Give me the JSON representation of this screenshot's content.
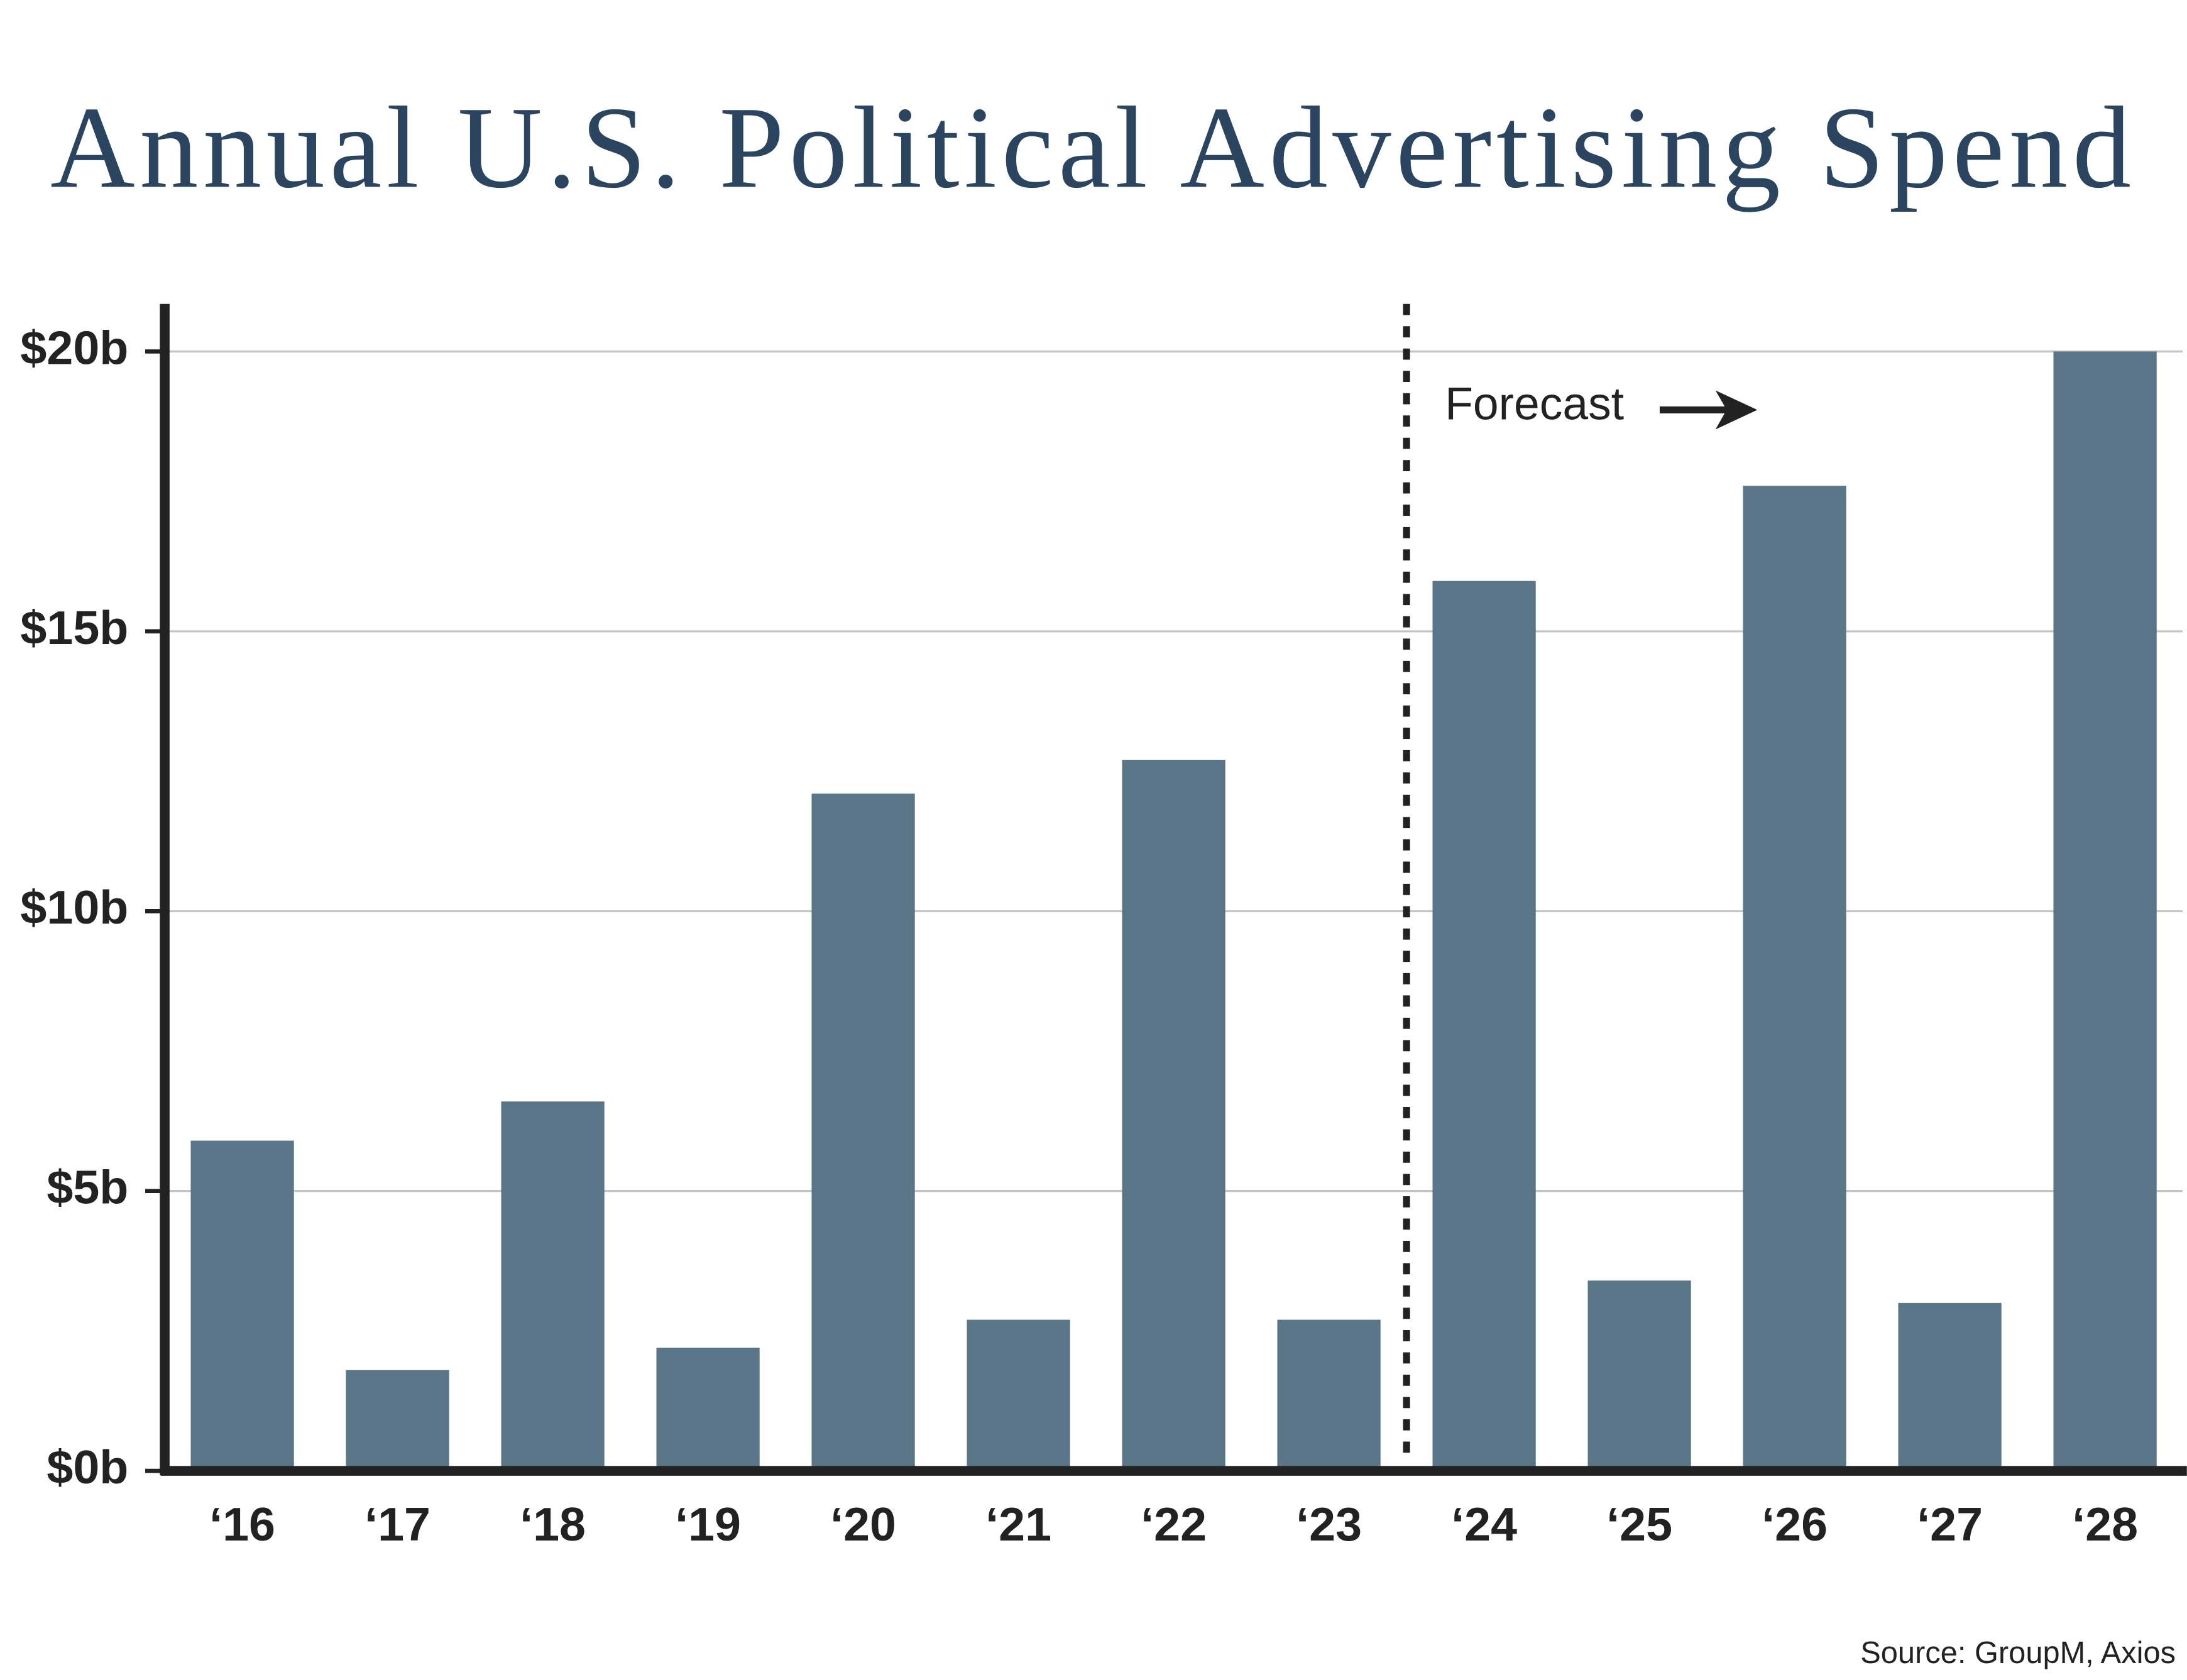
{
  "chart_data": {
    "type": "bar",
    "title": "Annual U.S. Political Advertising Spend",
    "categories": [
      "‘16",
      "‘17",
      "‘18",
      "‘19",
      "‘20",
      "‘21",
      "‘22",
      "‘23",
      "‘24",
      "‘25",
      "‘26",
      "‘27",
      "‘28"
    ],
    "values": [
      5.9,
      1.8,
      6.6,
      2.2,
      12.1,
      2.7,
      12.7,
      2.7,
      15.9,
      3.4,
      17.6,
      3.0,
      20.0
    ],
    "color": "#5a7488",
    "ylim": [
      0,
      20.8
    ],
    "yticks": [
      {
        "value": 0,
        "label": "$0b"
      },
      {
        "value": 5,
        "label": "$5b"
      },
      {
        "value": 10,
        "label": "$10b"
      },
      {
        "value": 15,
        "label": "$15b"
      },
      {
        "value": 20,
        "label": "$20b"
      }
    ],
    "grid": true,
    "annotation": "Forecast",
    "source": "Source: GroupM, Axios"
  }
}
